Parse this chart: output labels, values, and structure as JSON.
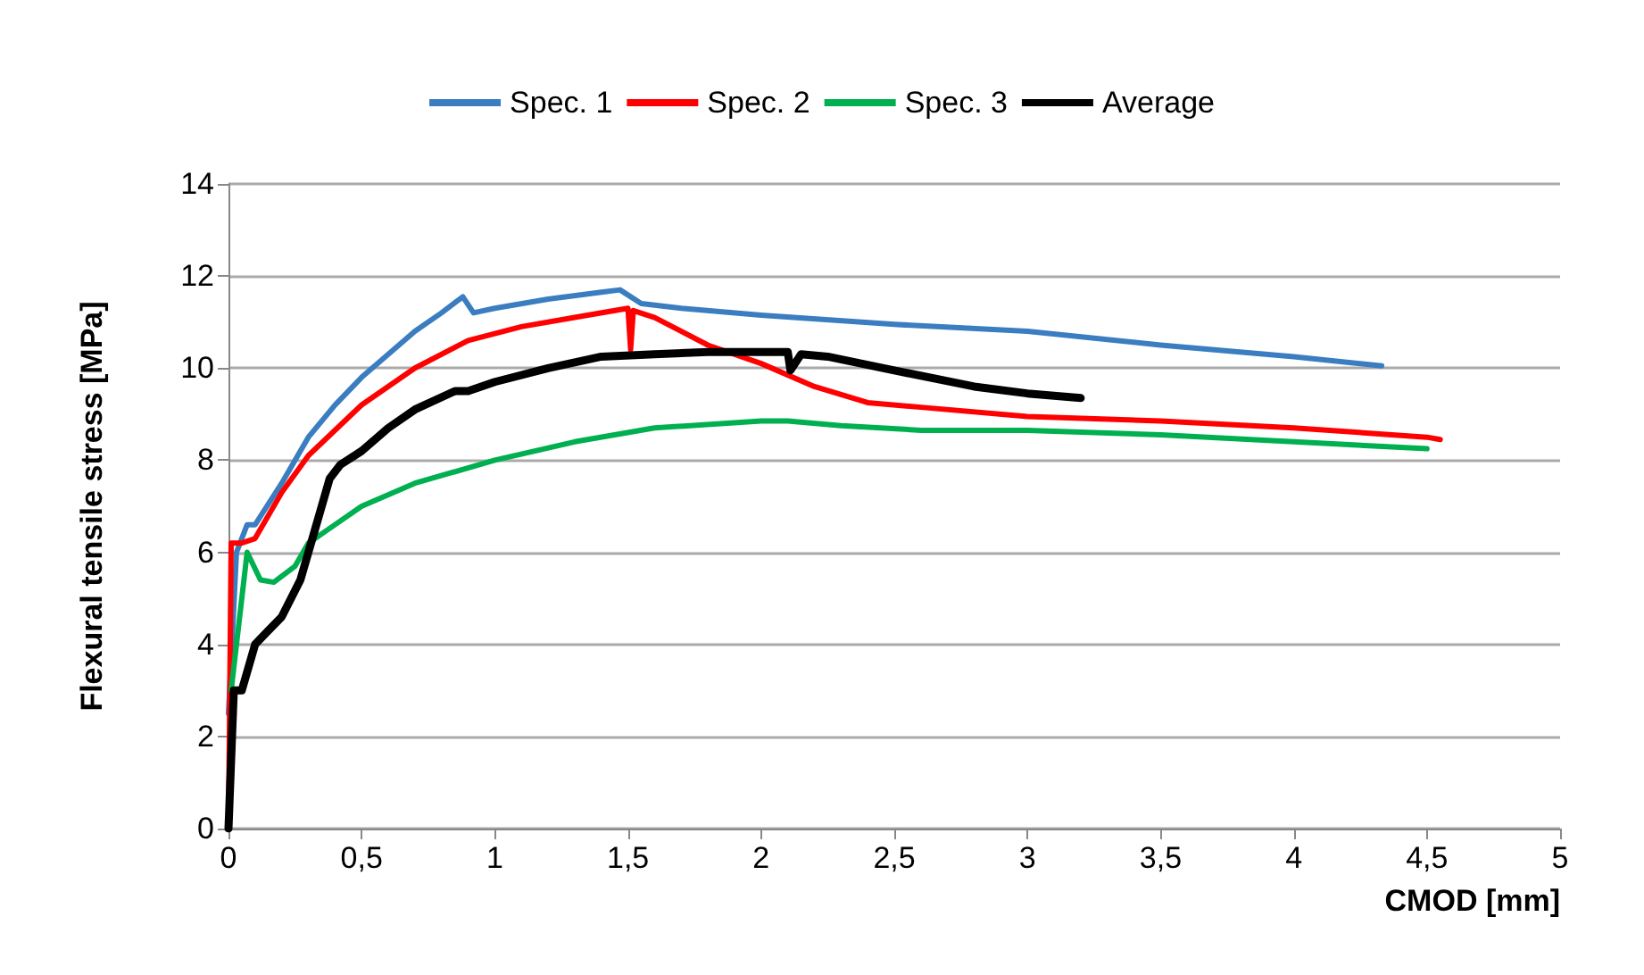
{
  "chart_data": {
    "type": "line",
    "xlabel": "CMOD [mm]",
    "ylabel": "Flexural tensile stress [MPa]",
    "xlim": [
      0,
      5
    ],
    "ylim": [
      0,
      14
    ],
    "xticks": [
      0,
      {
        "value": 0.5,
        "label": "0,5"
      },
      1,
      {
        "value": 1.5,
        "label": "1,5"
      },
      2,
      {
        "value": 2.5,
        "label": "2,5"
      },
      3,
      {
        "value": 3.5,
        "label": "3,5"
      },
      4,
      {
        "value": 4.5,
        "label": "4,5"
      },
      5
    ],
    "yticks": [
      0,
      2,
      4,
      6,
      8,
      10,
      12,
      14
    ],
    "grid": "y",
    "legend": "top",
    "marker": "none",
    "line_style": "solid",
    "series": [
      {
        "name": "Spec. 1",
        "color": "#3a7dc0",
        "x": [
          0,
          0.03,
          0.07,
          0.1,
          0.2,
          0.3,
          0.4,
          0.5,
          0.6,
          0.7,
          0.8,
          0.88,
          0.92,
          1.0,
          1.2,
          1.4,
          1.47,
          1.55,
          1.7,
          2.0,
          2.5,
          3.0,
          3.5,
          4.0,
          4.33
        ],
        "values": [
          2.5,
          6.0,
          6.6,
          6.6,
          7.5,
          8.5,
          9.2,
          9.8,
          10.3,
          10.8,
          11.2,
          11.55,
          11.2,
          11.3,
          11.5,
          11.65,
          11.7,
          11.4,
          11.3,
          11.15,
          10.95,
          10.8,
          10.5,
          10.25,
          10.05
        ]
      },
      {
        "name": "Spec. 2",
        "color": "#ff0000",
        "x": [
          0,
          0.01,
          0.05,
          0.1,
          0.2,
          0.3,
          0.5,
          0.7,
          0.9,
          1.1,
          1.3,
          1.5,
          1.51,
          1.52,
          1.6,
          1.8,
          2.0,
          2.2,
          2.4,
          2.6,
          3.0,
          3.5,
          4.0,
          4.5,
          4.55
        ],
        "values": [
          0,
          6.2,
          6.2,
          6.3,
          7.3,
          8.1,
          9.2,
          10.0,
          10.6,
          10.9,
          11.1,
          11.3,
          10.4,
          11.25,
          11.1,
          10.5,
          10.1,
          9.6,
          9.25,
          9.15,
          8.95,
          8.85,
          8.7,
          8.5,
          8.45
        ]
      },
      {
        "name": "Spec. 3",
        "color": "#00b050",
        "x": [
          0.01,
          0.07,
          0.12,
          0.17,
          0.25,
          0.3,
          0.4,
          0.5,
          0.7,
          1.0,
          1.3,
          1.6,
          2.0,
          2.1,
          2.3,
          2.6,
          3.0,
          3.5,
          4.0,
          4.5
        ],
        "values": [
          3.0,
          6.0,
          5.4,
          5.35,
          5.7,
          6.2,
          6.6,
          7.0,
          7.5,
          8.0,
          8.4,
          8.7,
          8.85,
          8.85,
          8.75,
          8.65,
          8.65,
          8.55,
          8.4,
          8.25
        ]
      },
      {
        "name": "Average",
        "color": "#000000",
        "x": [
          0,
          0.02,
          0.05,
          0.1,
          0.15,
          0.2,
          0.27,
          0.33,
          0.38,
          0.42,
          0.5,
          0.6,
          0.7,
          0.85,
          0.9,
          1.0,
          1.2,
          1.4,
          1.6,
          1.8,
          2.0,
          2.1,
          2.11,
          2.15,
          2.25,
          2.5,
          2.8,
          3.0,
          3.2
        ],
        "values": [
          0,
          3.0,
          3.0,
          4.0,
          4.3,
          4.6,
          5.4,
          6.6,
          7.6,
          7.9,
          8.2,
          8.7,
          9.1,
          9.5,
          9.5,
          9.7,
          10.0,
          10.25,
          10.3,
          10.35,
          10.35,
          10.35,
          9.95,
          10.3,
          10.25,
          9.95,
          9.6,
          9.45,
          9.35
        ]
      }
    ]
  }
}
